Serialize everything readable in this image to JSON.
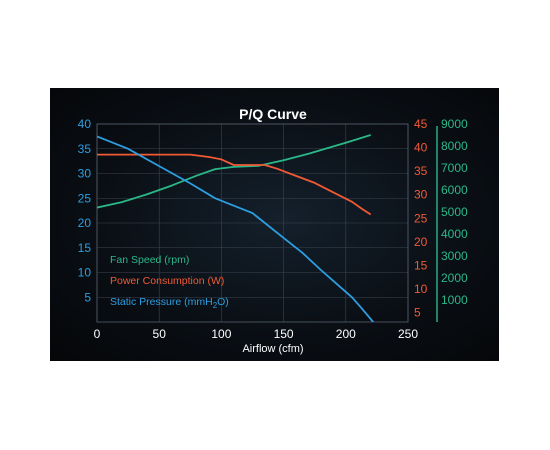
{
  "chart_data": {
    "type": "line",
    "title": "P/Q Curve",
    "xlabel": "Airflow (cfm)",
    "xlim": [
      0,
      250
    ],
    "x_ticks": [
      "0",
      "50",
      "100",
      "150",
      "200",
      "250"
    ],
    "grid": true,
    "legend_placement": "lower-left",
    "axes": [
      {
        "id": "pressure",
        "side": "left",
        "ylim": [
          0,
          40
        ],
        "ticks": [
          "5",
          "10",
          "15",
          "20",
          "25",
          "30",
          "35",
          "40"
        ],
        "color": "#2d9ee0"
      },
      {
        "id": "power",
        "side": "right-inner",
        "ylim": [
          3,
          45
        ],
        "ticks": [
          "5",
          "10",
          "15",
          "20",
          "25",
          "30",
          "35",
          "40",
          "45"
        ],
        "color": "#f05a35"
      },
      {
        "id": "speed",
        "side": "right-outer",
        "ylim": [
          0,
          9000
        ],
        "ticks": [
          "1000",
          "2000",
          "3000",
          "4000",
          "5000",
          "6000",
          "7000",
          "8000",
          "9000"
        ],
        "color": "#2bb889"
      }
    ],
    "series": [
      {
        "name": "Fan Speed (rpm)",
        "axis": "speed",
        "color": "#2bb889",
        "x": [
          0,
          20,
          40,
          60,
          80,
          95,
          110,
          130,
          150,
          170,
          185,
          200,
          220
        ],
        "values": [
          5200,
          5450,
          5800,
          6200,
          6650,
          6950,
          7050,
          7100,
          7350,
          7650,
          7900,
          8150,
          8500
        ]
      },
      {
        "name": "Power Consumption (W)",
        "axis": "power",
        "color": "#f05a35",
        "x": [
          0,
          25,
          50,
          75,
          90,
          100,
          110,
          125,
          135,
          145,
          160,
          175,
          190,
          205,
          213,
          220
        ],
        "values": [
          38.5,
          38.5,
          38.5,
          38.5,
          38.0,
          37.5,
          36.3,
          36.3,
          36.3,
          35.5,
          34.0,
          32.5,
          30.5,
          28.5,
          27.0,
          25.8
        ]
      },
      {
        "name": "Static Pressure (mmH2O)",
        "axis": "pressure",
        "color": "#2d9ee0",
        "x": [
          0,
          25,
          50,
          75,
          95,
          110,
          125,
          135,
          150,
          165,
          180,
          195,
          205,
          212,
          222
        ],
        "values": [
          37.5,
          35.0,
          31.5,
          28.0,
          25.0,
          23.5,
          22.0,
          20.0,
          17.0,
          14.0,
          10.5,
          7.2,
          5.0,
          3.0,
          0.0
        ]
      }
    ]
  }
}
